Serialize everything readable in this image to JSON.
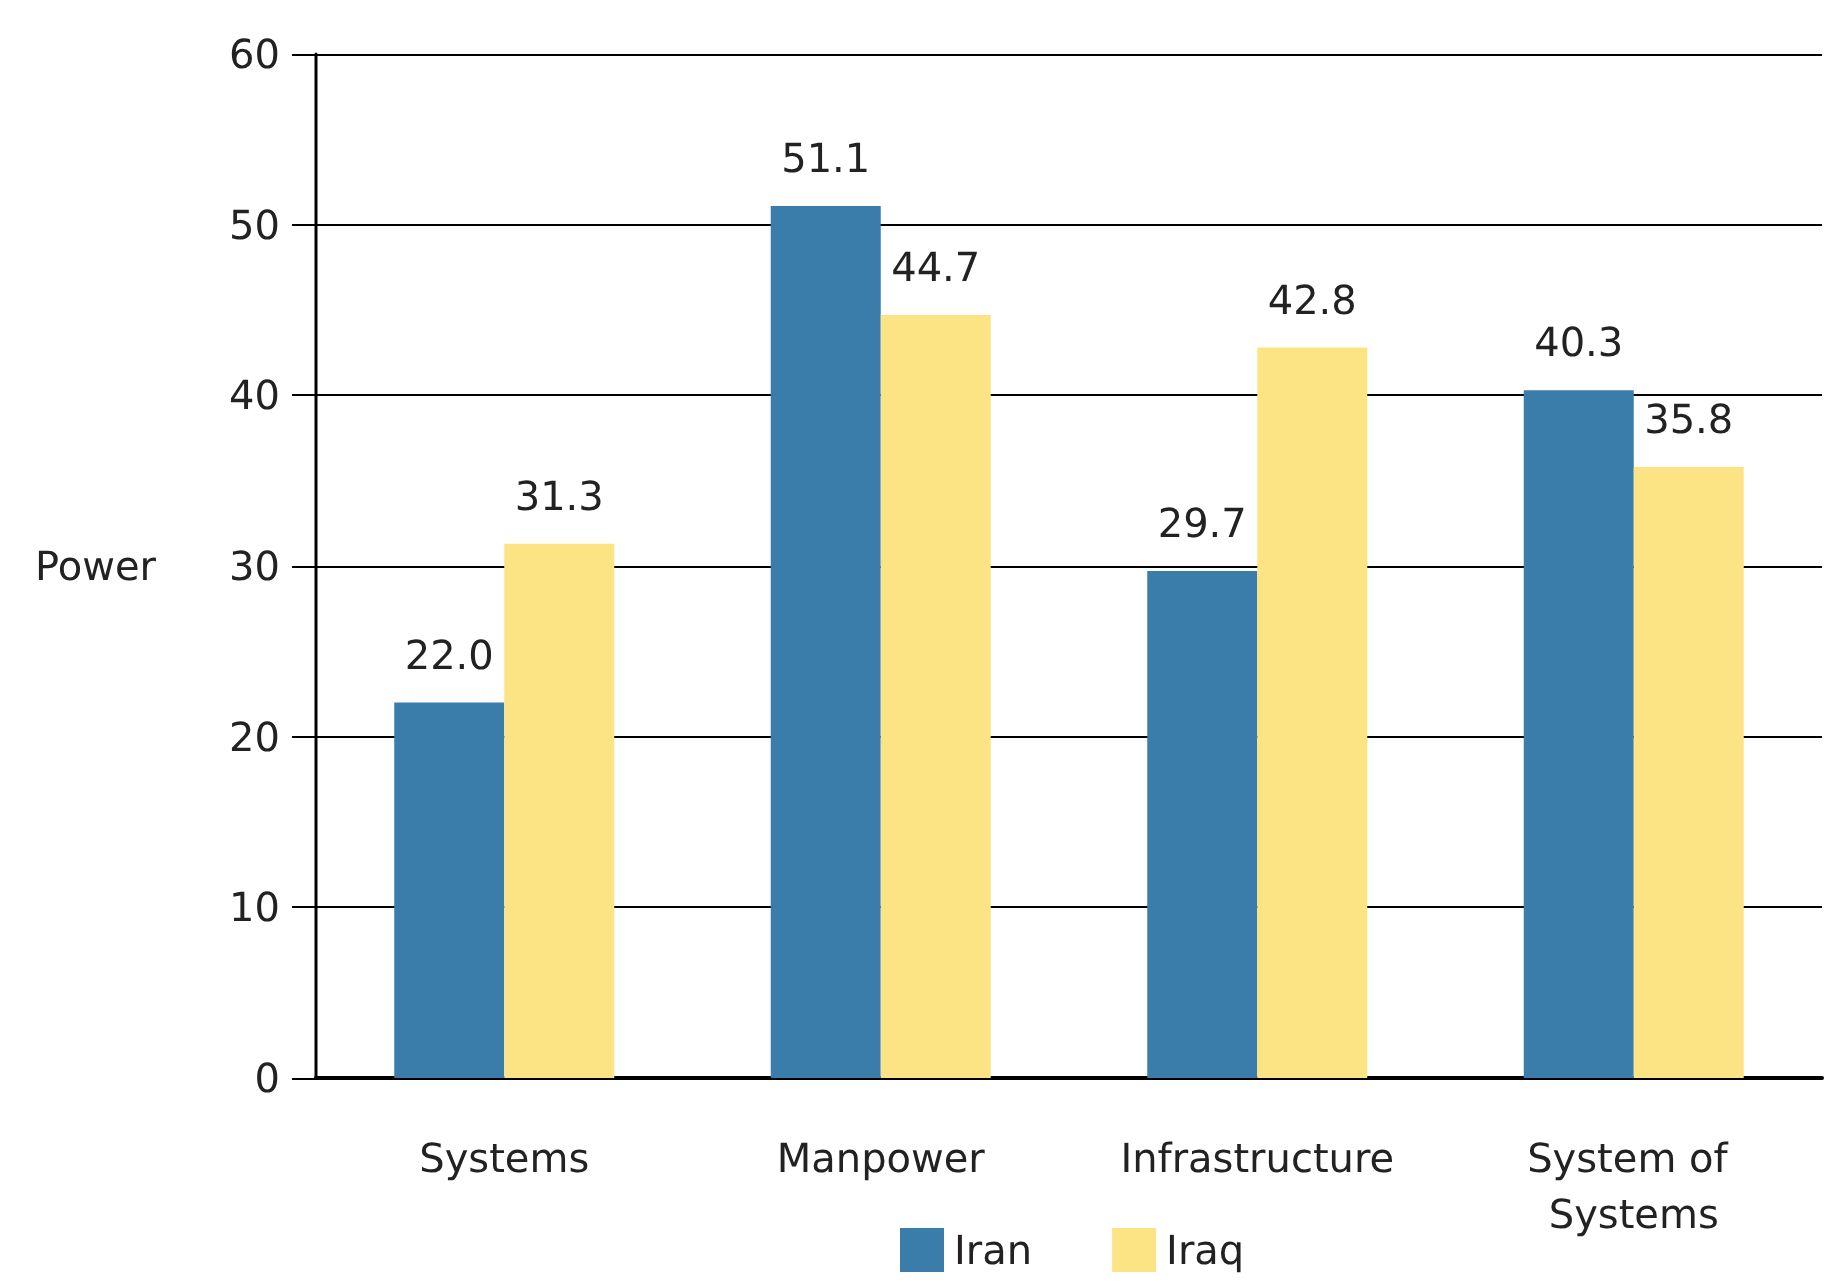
{
  "chart_data": {
    "type": "bar",
    "ylabel": "Power",
    "categories": [
      "Systems",
      "Manpower",
      "Infrastructure",
      "System of Systems"
    ],
    "series": [
      {
        "name": "Iran",
        "color": "#3a7dab",
        "values": [
          22.0,
          51.1,
          29.7,
          40.3
        ],
        "value_labels": [
          "22.0",
          "51.1",
          "29.7",
          "40.3"
        ]
      },
      {
        "name": "Iraq",
        "color": "#fce484",
        "values": [
          31.3,
          44.7,
          42.8,
          35.8
        ],
        "value_labels": [
          "31.3",
          "44.7",
          "42.8",
          "35.8"
        ]
      }
    ],
    "ylim": [
      0,
      60
    ],
    "yticks": [
      0,
      10,
      20,
      30,
      40,
      50,
      60
    ],
    "grid": "y",
    "legend": "bottom"
  }
}
